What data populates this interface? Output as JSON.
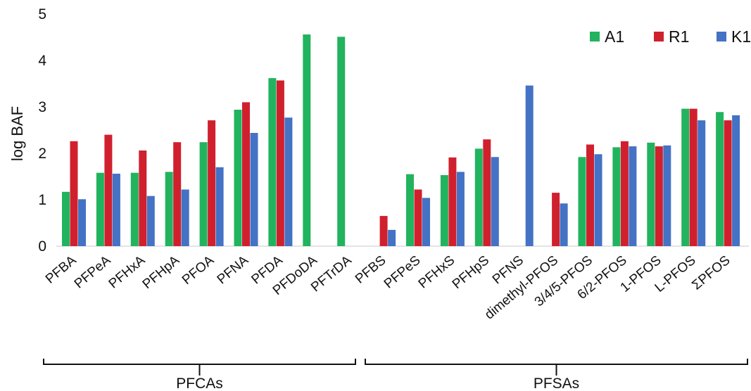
{
  "chart_data": {
    "type": "bar",
    "ylabel": "log BAF",
    "ylim": [
      0,
      5
    ],
    "yticks": [
      0,
      1,
      2,
      3,
      4,
      5
    ],
    "legend_position": "top-right",
    "categories": [
      "PFBA",
      "PFPeA",
      "PFHxA",
      "PFHpA",
      "PFOA",
      "PFNA",
      "PFDA",
      "PFDoDA",
      "PFTrDA",
      "PFBS",
      "PFPeS",
      "PFHxS",
      "PFHpS",
      "PFNS",
      "dimethyl-PFOS",
      "3/4/5-PFOS",
      "6/2-PFOS",
      "1-PFOS",
      "L-PFOS",
      "ΣPFOS"
    ],
    "series": [
      {
        "name": "A1",
        "color": "#22b35e",
        "values": [
          1.17,
          1.58,
          1.58,
          1.6,
          2.24,
          2.94,
          3.62,
          4.56,
          4.51,
          null,
          1.55,
          1.53,
          2.1,
          null,
          null,
          1.92,
          2.13,
          2.23,
          2.96,
          2.89
        ]
      },
      {
        "name": "R1",
        "color": "#d0202e",
        "values": [
          2.26,
          2.4,
          2.06,
          2.24,
          2.71,
          3.1,
          3.57,
          null,
          null,
          0.65,
          1.22,
          1.91,
          2.3,
          null,
          1.15,
          2.19,
          2.26,
          2.15,
          2.96,
          2.71
        ]
      },
      {
        "name": "K1",
        "color": "#4472c4",
        "values": [
          1.01,
          1.56,
          1.08,
          1.22,
          1.7,
          2.44,
          2.77,
          null,
          null,
          0.35,
          1.04,
          1.6,
          1.92,
          3.46,
          0.92,
          1.98,
          2.15,
          2.17,
          2.71,
          2.82
        ]
      }
    ],
    "groups": [
      {
        "label": "PFCAs",
        "from": 0,
        "to": 8
      },
      {
        "label": "PFSAs",
        "from": 9,
        "to": 19
      }
    ],
    "grid": false
  }
}
